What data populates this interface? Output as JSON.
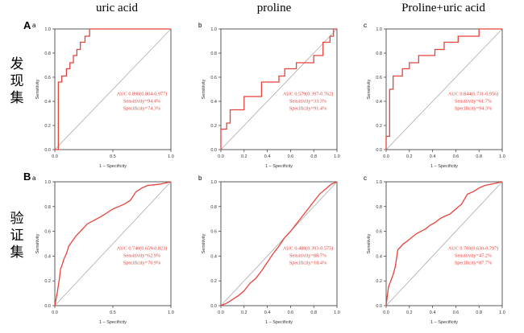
{
  "column_titles": [
    "uric acid",
    "proline",
    "Proline+uric acid"
  ],
  "rows": [
    {
      "letter": "A",
      "side_label": [
        "发",
        "现",
        "集"
      ]
    },
    {
      "letter": "B",
      "side_label": [
        "验",
        "证",
        "集"
      ]
    }
  ],
  "colors": {
    "curve": "#e8423b",
    "diagonal": "#aaaaaa",
    "annotation": "#e8423b",
    "axis": "#333333"
  },
  "chart_data": [
    {
      "type": "line",
      "panel": "A-a",
      "sub_label": "a",
      "xlabel": "1 – Specificity",
      "ylabel": "Sensitivity",
      "xlim": [
        0,
        1
      ],
      "ylim": [
        0,
        1
      ],
      "xticks": [
        "0.0",
        "0.5",
        "1.0"
      ],
      "yticks": [
        "0.0",
        "0.2",
        "0.4",
        "0.6",
        "0.8",
        "1.0"
      ],
      "annotations": [
        "AUC 0.890(0.804-0.977)",
        "Sensitivity=94.4%",
        "Specificity=74.3%"
      ],
      "x": [
        0,
        0.03,
        0.03,
        0.06,
        0.06,
        0.1,
        0.1,
        0.13,
        0.13,
        0.16,
        0.16,
        0.19,
        0.19,
        0.22,
        0.22,
        0.26,
        0.26,
        0.3,
        0.3,
        1.0
      ],
      "y": [
        0,
        0,
        0.56,
        0.56,
        0.61,
        0.61,
        0.67,
        0.67,
        0.72,
        0.72,
        0.78,
        0.78,
        0.83,
        0.83,
        0.89,
        0.89,
        0.94,
        0.94,
        1.0,
        1.0
      ]
    },
    {
      "type": "line",
      "panel": "A-b",
      "sub_label": "b",
      "xlabel": "1 – Specificity",
      "ylabel": "Sensitivity",
      "xlim": [
        0,
        1
      ],
      "ylim": [
        0,
        1
      ],
      "xticks": [
        "0.0",
        "0.2",
        "0.4",
        "0.6",
        "0.8",
        "1.0"
      ],
      "yticks": [
        "0.0",
        "0.2",
        "0.4",
        "0.6",
        "0.8",
        "1.0"
      ],
      "annotations": [
        "AUC 0.579(0.397-0.762)",
        "Sensitivity=33.3%",
        "Specificity=91.4%"
      ],
      "x": [
        0,
        0,
        0.05,
        0.05,
        0.08,
        0.08,
        0.2,
        0.2,
        0.35,
        0.35,
        0.5,
        0.5,
        0.55,
        0.55,
        0.65,
        0.65,
        0.8,
        0.8,
        0.88,
        0.88,
        0.94,
        0.94,
        0.97,
        0.97,
        1.0
      ],
      "y": [
        0,
        0.17,
        0.17,
        0.22,
        0.22,
        0.33,
        0.33,
        0.44,
        0.44,
        0.56,
        0.56,
        0.61,
        0.61,
        0.67,
        0.67,
        0.72,
        0.72,
        0.78,
        0.78,
        0.89,
        0.89,
        0.94,
        0.94,
        1.0,
        1.0
      ]
    },
    {
      "type": "line",
      "panel": "A-c",
      "sub_label": "c",
      "xlabel": "1 – Specificity",
      "ylabel": "Sensitivity",
      "xlim": [
        0,
        1
      ],
      "ylim": [
        0,
        1
      ],
      "xticks": [
        "0.0",
        "0.2",
        "0.4",
        "0.6",
        "0.8",
        "1.0"
      ],
      "yticks": [
        "0.0",
        "0.2",
        "0.4",
        "0.6",
        "0.8",
        "1.0"
      ],
      "annotations": [
        "AUC 0.844(0.731-0.956)",
        "Sensitivity=61.7%",
        "Specificity=94.3%"
      ],
      "x": [
        0,
        0,
        0.03,
        0.03,
        0.06,
        0.06,
        0.14,
        0.14,
        0.2,
        0.2,
        0.28,
        0.28,
        0.42,
        0.42,
        0.5,
        0.5,
        0.62,
        0.62,
        0.8,
        0.8,
        1.0
      ],
      "y": [
        0,
        0.11,
        0.11,
        0.5,
        0.5,
        0.61,
        0.61,
        0.67,
        0.67,
        0.72,
        0.72,
        0.78,
        0.78,
        0.83,
        0.83,
        0.89,
        0.89,
        0.94,
        0.94,
        1.0,
        1.0
      ]
    },
    {
      "type": "line",
      "panel": "B-a",
      "sub_label": "a",
      "xlabel": "1 – Specificity",
      "ylabel": "Sensitivity",
      "xlim": [
        0,
        1
      ],
      "ylim": [
        0,
        1
      ],
      "xticks": [
        "0.0",
        "0.5",
        "1.0"
      ],
      "yticks": [
        "0.0",
        "0.2",
        "0.4",
        "0.6",
        "0.8",
        "1.0"
      ],
      "annotations": [
        "AUC 0.740(0.659-0.823)",
        "Sensitivity=62.9%",
        "Specificity=70.9%"
      ],
      "x": [
        0,
        0.01,
        0.02,
        0.03,
        0.04,
        0.05,
        0.06,
        0.08,
        0.1,
        0.12,
        0.15,
        0.18,
        0.2,
        0.24,
        0.28,
        0.32,
        0.36,
        0.4,
        0.45,
        0.5,
        0.55,
        0.6,
        0.65,
        0.7,
        0.75,
        0.8,
        0.9,
        1.0
      ],
      "y": [
        0,
        0.05,
        0.1,
        0.16,
        0.22,
        0.3,
        0.32,
        0.38,
        0.42,
        0.48,
        0.52,
        0.56,
        0.58,
        0.62,
        0.66,
        0.68,
        0.7,
        0.72,
        0.75,
        0.78,
        0.8,
        0.82,
        0.85,
        0.92,
        0.95,
        0.97,
        0.98,
        1.0
      ]
    },
    {
      "type": "line",
      "panel": "B-b",
      "sub_label": "b",
      "xlabel": "1 – Specificity",
      "ylabel": "Sensitivity",
      "xlim": [
        0,
        1
      ],
      "ylim": [
        0,
        1
      ],
      "xticks": [
        "0.0",
        "0.2",
        "0.4",
        "0.6",
        "0.8",
        "1.0"
      ],
      "yticks": [
        "0.0",
        "0.2",
        "0.4",
        "0.6",
        "0.8",
        "1.0"
      ],
      "annotations": [
        "AUC 0.488(0.393-0.575)",
        "Sensitivity=88.7%",
        "Specificity=18.4%"
      ],
      "x": [
        0,
        0.05,
        0.1,
        0.15,
        0.2,
        0.25,
        0.3,
        0.35,
        0.4,
        0.45,
        0.5,
        0.55,
        0.6,
        0.65,
        0.7,
        0.75,
        0.8,
        0.85,
        0.9,
        0.95,
        1.0
      ],
      "y": [
        0,
        0.02,
        0.05,
        0.08,
        0.12,
        0.18,
        0.22,
        0.28,
        0.35,
        0.42,
        0.48,
        0.55,
        0.6,
        0.66,
        0.72,
        0.78,
        0.84,
        0.9,
        0.94,
        0.98,
        1.0
      ]
    },
    {
      "type": "line",
      "panel": "B-c",
      "sub_label": "c",
      "xlabel": "1 – Specificity",
      "ylabel": "Sensitivity",
      "xlim": [
        0,
        1
      ],
      "ylim": [
        0,
        1
      ],
      "xticks": [
        "0.0",
        "0.2",
        "0.4",
        "0.6",
        "0.8",
        "1.0"
      ],
      "yticks": [
        "0.0",
        "0.2",
        "0.4",
        "0.6",
        "0.8",
        "1.0"
      ],
      "annotations": [
        "AUC 0.703(0.630-0.797)",
        "Sensitivity=47.2%",
        "Specificity=87.7%"
      ],
      "x": [
        0,
        0.01,
        0.02,
        0.04,
        0.06,
        0.08,
        0.1,
        0.12,
        0.15,
        0.18,
        0.22,
        0.26,
        0.3,
        0.34,
        0.38,
        0.42,
        0.46,
        0.5,
        0.55,
        0.6,
        0.65,
        0.7,
        0.75,
        0.8,
        0.85,
        0.9,
        1.0
      ],
      "y": [
        0,
        0.08,
        0.15,
        0.2,
        0.25,
        0.32,
        0.45,
        0.47,
        0.5,
        0.52,
        0.55,
        0.58,
        0.6,
        0.62,
        0.65,
        0.67,
        0.7,
        0.72,
        0.74,
        0.78,
        0.82,
        0.9,
        0.92,
        0.95,
        0.97,
        0.98,
        1.0
      ]
    }
  ]
}
